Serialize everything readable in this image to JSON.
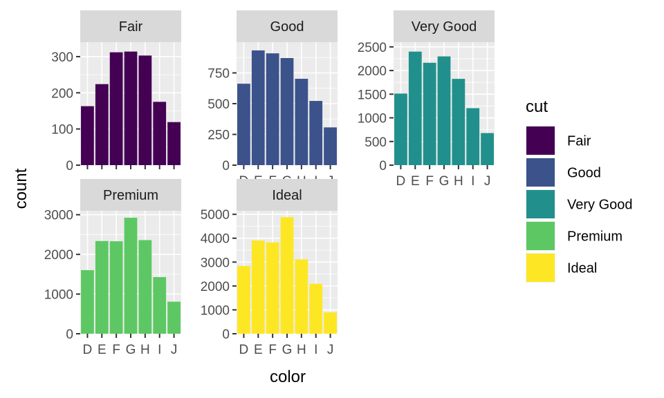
{
  "chart_data": {
    "type": "bar",
    "facet_by": "cut",
    "xlabel": "color",
    "ylabel": "count",
    "categories": [
      "D",
      "E",
      "F",
      "G",
      "H",
      "I",
      "J"
    ],
    "legend": {
      "title": "cut",
      "placement": "right",
      "entries": [
        {
          "name": "Fair",
          "color": "#440154"
        },
        {
          "name": "Good",
          "color": "#3b528b"
        },
        {
          "name": "Very Good",
          "color": "#21908c"
        },
        {
          "name": "Premium",
          "color": "#5dc863"
        },
        {
          "name": "Ideal",
          "color": "#fde725"
        }
      ]
    },
    "panels": [
      {
        "name": "Fair",
        "color": "#440154",
        "values": [
          163,
          224,
          312,
          314,
          303,
          175,
          119
        ],
        "ylim": [
          0,
          340
        ],
        "yticks": [
          0,
          100,
          200,
          300
        ]
      },
      {
        "name": "Good",
        "color": "#3b528b",
        "values": [
          662,
          933,
          909,
          871,
          702,
          522,
          307
        ],
        "ylim": [
          0,
          1000
        ],
        "yticks": [
          0,
          250,
          500,
          750
        ]
      },
      {
        "name": "Very Good",
        "color": "#21908c",
        "values": [
          1513,
          2400,
          2164,
          2299,
          1824,
          1204,
          678
        ],
        "ylim": [
          0,
          2600
        ],
        "yticks": [
          0,
          500,
          1000,
          1500,
          2000,
          2500
        ]
      },
      {
        "name": "Premium",
        "color": "#5dc863",
        "values": [
          1603,
          2337,
          2331,
          2924,
          2360,
          1428,
          808
        ],
        "ylim": [
          0,
          3100
        ],
        "yticks": [
          0,
          1000,
          2000,
          3000
        ]
      },
      {
        "name": "Ideal",
        "color": "#fde725",
        "values": [
          2834,
          3903,
          3826,
          4884,
          3115,
          2093,
          896
        ],
        "ylim": [
          0,
          5150
        ],
        "yticks": [
          0,
          1000,
          2000,
          3000,
          4000,
          5000
        ]
      }
    ],
    "grid": true
  }
}
